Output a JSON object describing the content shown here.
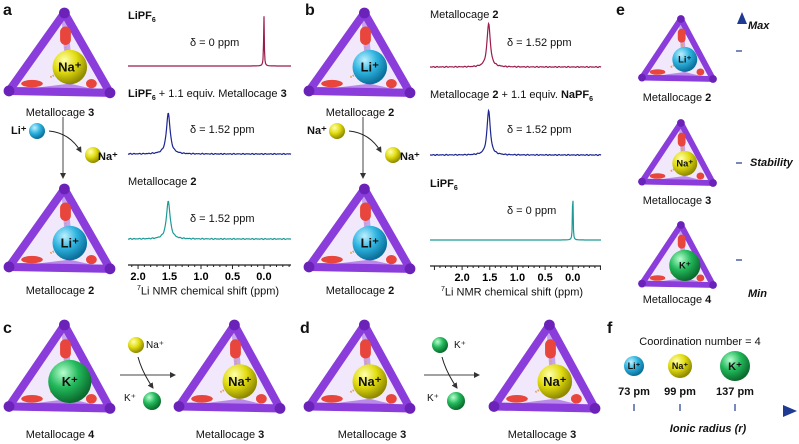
{
  "colors": {
    "cage": "#8a3ddb",
    "cage_dark": "#6a22b8",
    "linker": "#e8453c",
    "li": "#2fb4e0",
    "na": "#e2dc10",
    "k": "#22b85a",
    "trace_red": "#9b1b4c",
    "trace_blue": "#1c2590",
    "trace_teal": "#1e9a96",
    "axis_arrow": "#1f3a93"
  },
  "panel_a": {
    "letter": "a",
    "top_cage": {
      "ion": "Na⁺",
      "ion_type": "na",
      "label": "Metallocage ",
      "num": "3"
    },
    "bottom_cage": {
      "ion": "Li⁺",
      "ion_type": "li",
      "label": "Metallocage ",
      "num": "2"
    },
    "in_ion": "Li⁺",
    "out_ion": "Na⁺",
    "spectra": [
      {
        "title_a": "LiPF",
        "title_sub": "6",
        "title_b": "",
        "title_bold": "",
        "peak_ppm": 0.0,
        "shift_text": "δ = 0 ppm",
        "color": "trace_red",
        "sharp": true
      },
      {
        "title_a": "LiPF",
        "title_sub": "6",
        "title_b": " + 1.1 equiv. Metallocage ",
        "title_bold": "3",
        "peak_ppm": 1.52,
        "shift_text": "δ = 1.52 ppm",
        "color": "trace_blue",
        "sharp": false
      },
      {
        "title_a": "Metallocage ",
        "title_sub": "",
        "title_b": "",
        "title_bold": "2",
        "peak_ppm": 1.52,
        "shift_text": "δ = 1.52 ppm",
        "color": "trace_teal",
        "sharp": false
      }
    ],
    "axis": {
      "ticks": [
        "2.0",
        "1.5",
        "1.0",
        "0.5",
        "0.0"
      ],
      "tick_values": [
        2.0,
        1.5,
        1.0,
        0.5,
        0.0
      ],
      "xlim": [
        2.16,
        -0.43
      ],
      "label_sup": "7",
      "label": "Li NMR chemical shift (ppm)"
    }
  },
  "panel_b": {
    "letter": "b",
    "top_cage": {
      "ion": "Li⁺",
      "ion_type": "li",
      "label": "Metallocage ",
      "num": "2"
    },
    "bottom_cage": {
      "ion": "Li⁺",
      "ion_type": "li",
      "label": "Metallocage ",
      "num": "2"
    },
    "in_ion": "Na⁺",
    "out_ion": "Na⁺",
    "spectra": [
      {
        "title_a": "Metallocage ",
        "title_bold": "2",
        "title_c": "",
        "title_bold2": "",
        "title_sub": "",
        "peak_ppm": 1.52,
        "shift_text": "δ = 1.52 ppm",
        "color": "trace_red",
        "sharp": false
      },
      {
        "title_a": "Metallocage ",
        "title_bold": "2",
        "title_c": " + 1.1 equiv. ",
        "title_bold2": "NaPF",
        "title_sub": "6",
        "peak_ppm": 1.52,
        "shift_text": "δ = 1.52 ppm",
        "color": "trace_blue",
        "sharp": false
      },
      {
        "title_a": "",
        "title_bold": "LiPF",
        "title_c": "",
        "title_bold2": "",
        "title_sub": "6",
        "peak_ppm": 0.0,
        "shift_text": "δ = 0 ppm",
        "color": "trace_teal",
        "sharp": true
      }
    ],
    "axis": {
      "ticks": [
        "2.0",
        "1.5",
        "1.0",
        "0.5",
        "0.0"
      ],
      "tick_values": [
        2.0,
        1.5,
        1.0,
        0.5,
        0.0
      ],
      "xlim": [
        2.58,
        -0.51
      ],
      "label_sup": "7",
      "label": "Li NMR chemical shift (ppm)"
    }
  },
  "panel_c": {
    "letter": "c",
    "left_cage": {
      "ion": "K⁺",
      "ion_type": "k",
      "label": "Metallocage ",
      "num": "4"
    },
    "right_cage": {
      "ion": "Na⁺",
      "ion_type": "na",
      "label": "Metallocage ",
      "num": "3"
    },
    "in_ion": "Na⁺",
    "in_type": "na",
    "out_ion": "K⁺",
    "out_type": "k"
  },
  "panel_d": {
    "letter": "d",
    "left_cage": {
      "ion": "Na⁺",
      "ion_type": "na",
      "label": "Metallocage ",
      "num": "3"
    },
    "right_cage": {
      "ion": "Na⁺",
      "ion_type": "na",
      "label": "Metallocage ",
      "num": "3"
    },
    "in_ion": "K⁺",
    "in_type": "k",
    "out_ion": "K⁺",
    "out_type": "k"
  },
  "panel_e": {
    "letter": "e",
    "cages": [
      {
        "ion": "Li⁺",
        "ion_type": "li",
        "label": "Metallocage ",
        "num": "2"
      },
      {
        "ion": "Na⁺",
        "ion_type": "na",
        "label": "Metallocage ",
        "num": "3"
      },
      {
        "ion": "K⁺",
        "ion_type": "k",
        "label": "Metallocage ",
        "num": "4"
      }
    ],
    "axis_max": "Max",
    "axis_mid": "Stability",
    "axis_min": "Min"
  },
  "panel_f": {
    "letter": "f",
    "title": "Coordination number = 4",
    "ions": [
      {
        "ion": "Li⁺",
        "type": "li",
        "radius": "73 pm"
      },
      {
        "ion": "Na⁺",
        "type": "na",
        "radius": "99 pm"
      },
      {
        "ion": "K⁺",
        "type": "k",
        "radius": "137 pm"
      }
    ],
    "axis_label": "Ionic radius (",
    "axis_var": "r",
    "axis_label_end": ")"
  }
}
